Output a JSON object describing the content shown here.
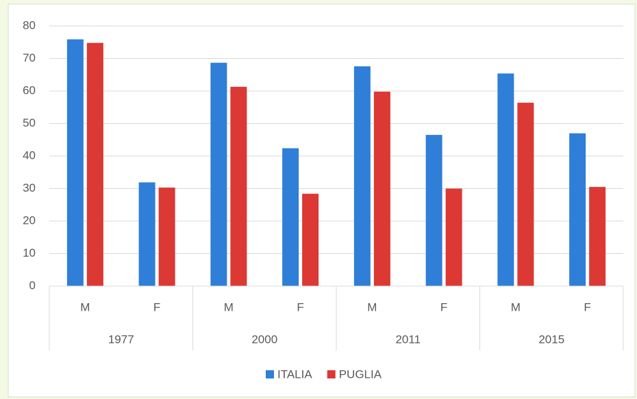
{
  "chart_data": {
    "type": "bar",
    "categories": [
      "M",
      "F",
      "M",
      "F",
      "M",
      "F",
      "M",
      "F"
    ],
    "groups": [
      "1977",
      "2000",
      "2011",
      "2015"
    ],
    "series": [
      {
        "name": "ITALIA",
        "color": "#2f7ed8",
        "values": [
          75.9,
          31.9,
          68.7,
          42.4,
          67.6,
          46.5,
          65.4,
          47.0
        ]
      },
      {
        "name": "PUGLIA",
        "color": "#dc3834",
        "values": [
          74.8,
          30.3,
          61.3,
          28.4,
          59.8,
          30.0,
          56.4,
          30.5
        ]
      }
    ],
    "ylim": [
      0,
      80
    ],
    "yticks": [
      0,
      10,
      20,
      30,
      40,
      50,
      60,
      70,
      80
    ],
    "grid": true,
    "legend": "bottom"
  }
}
